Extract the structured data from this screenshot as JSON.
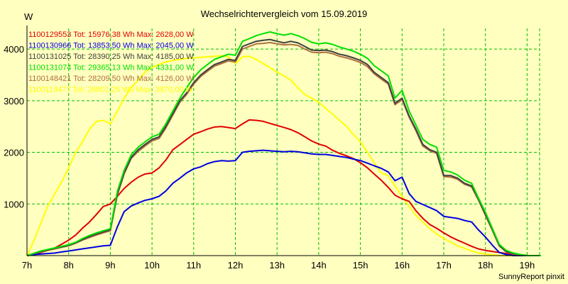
{
  "chart_data": {
    "type": "line",
    "title": "Wechselrichtervergleich vom 15.09.2019",
    "ylabel": "W",
    "xlabel": "",
    "credit": "SunnyReport pinxit",
    "ylim": [
      0,
      4400
    ],
    "xlim": [
      7,
      19.3
    ],
    "grid": true,
    "xticks": [
      {
        "v": 7,
        "label": "7h"
      },
      {
        "v": 8,
        "label": "8h"
      },
      {
        "v": 9,
        "label": "9h"
      },
      {
        "v": 10,
        "label": "10h"
      },
      {
        "v": 11,
        "label": "11h"
      },
      {
        "v": 12,
        "label": "12h"
      },
      {
        "v": 13,
        "label": "13h"
      },
      {
        "v": 14,
        "label": "14h"
      },
      {
        "v": 15,
        "label": "15h"
      },
      {
        "v": 16,
        "label": "16h"
      },
      {
        "v": 17,
        "label": "17h"
      },
      {
        "v": 18,
        "label": "18h"
      },
      {
        "v": 19,
        "label": "19h"
      }
    ],
    "yticks": [
      {
        "v": 1000,
        "label": "1000"
      },
      {
        "v": 2000,
        "label": "2000"
      },
      {
        "v": 3000,
        "label": "3000"
      },
      {
        "v": 4000,
        "label": "4000"
      }
    ],
    "x": [
      7.0,
      7.17,
      7.33,
      7.5,
      7.67,
      7.83,
      8.0,
      8.17,
      8.33,
      8.5,
      8.67,
      8.83,
      9.0,
      9.17,
      9.33,
      9.5,
      9.67,
      9.83,
      10.0,
      10.17,
      10.33,
      10.5,
      10.67,
      10.83,
      11.0,
      11.17,
      11.33,
      11.5,
      11.67,
      11.83,
      12.0,
      12.17,
      12.33,
      12.5,
      12.67,
      12.83,
      13.0,
      13.17,
      13.33,
      13.5,
      13.67,
      13.83,
      14.0,
      14.17,
      14.33,
      14.5,
      14.67,
      14.83,
      15.0,
      15.17,
      15.33,
      15.5,
      15.67,
      15.83,
      16.0,
      16.17,
      16.33,
      16.5,
      16.67,
      16.83,
      17.0,
      17.17,
      17.33,
      17.5,
      17.67,
      17.83,
      18.0,
      18.17,
      18.33,
      18.5,
      18.67,
      18.83,
      19.0,
      19.17,
      19.33
    ],
    "series": [
      {
        "name": "1100129553",
        "legend": "1100129553 Tot: 15976,38 Wh Max: 2628,00 W",
        "color": "#e00000",
        "values": [
          0,
          30,
          60,
          100,
          150,
          220,
          300,
          400,
          530,
          650,
          800,
          950,
          1000,
          1150,
          1300,
          1420,
          1520,
          1580,
          1600,
          1700,
          1850,
          2050,
          2150,
          2250,
          2350,
          2400,
          2450,
          2490,
          2500,
          2480,
          2460,
          2550,
          2628,
          2620,
          2600,
          2560,
          2520,
          2480,
          2440,
          2380,
          2300,
          2220,
          2160,
          2120,
          2040,
          1980,
          1930,
          1880,
          1800,
          1700,
          1580,
          1460,
          1320,
          1170,
          1100,
          1050,
          870,
          720,
          600,
          530,
          440,
          360,
          300,
          240,
          180,
          130,
          100,
          80,
          60,
          40,
          25,
          10,
          0,
          0,
          0
        ]
      },
      {
        "name": "1100130966",
        "legend": "1100130966 Tot: 13853,50 Wh Max: 2045,00 W",
        "color": "#0000e0",
        "values": [
          0,
          20,
          30,
          40,
          50,
          70,
          90,
          110,
          130,
          150,
          170,
          190,
          200,
          560,
          850,
          960,
          1020,
          1070,
          1100,
          1150,
          1250,
          1400,
          1500,
          1600,
          1680,
          1720,
          1780,
          1820,
          1840,
          1830,
          1840,
          2000,
          2020,
          2030,
          2040,
          2030,
          2020,
          2010,
          2020,
          2010,
          1990,
          1970,
          1960,
          1960,
          1940,
          1920,
          1900,
          1870,
          1840,
          1790,
          1740,
          1690,
          1620,
          1450,
          1520,
          1200,
          1050,
          990,
          930,
          870,
          760,
          740,
          720,
          680,
          650,
          500,
          360,
          200,
          60,
          20,
          0,
          0,
          0,
          0,
          0
        ]
      },
      {
        "name": "1100131025",
        "legend": "1100131025 Tot: 28390,25 Wh Max: 4185,00 W",
        "color": "#404040",
        "values": [
          0,
          40,
          80,
          110,
          140,
          170,
          200,
          250,
          310,
          370,
          420,
          460,
          500,
          1200,
          1600,
          1900,
          2050,
          2150,
          2250,
          2300,
          2500,
          2750,
          3000,
          3150,
          3350,
          3500,
          3600,
          3700,
          3750,
          3800,
          3780,
          4050,
          4100,
          4150,
          4170,
          4185,
          4150,
          4120,
          4150,
          4120,
          4050,
          3980,
          3970,
          3980,
          3950,
          3900,
          3870,
          3830,
          3780,
          3700,
          3550,
          3450,
          3350,
          2950,
          3050,
          2700,
          2450,
          2150,
          2050,
          2000,
          1550,
          1550,
          1500,
          1400,
          1350,
          1100,
          800,
          500,
          200,
          80,
          40,
          20,
          0,
          0,
          0
        ]
      },
      {
        "name": "1100131074",
        "legend": "1100131074 Tot: 29365,13 Wh Max: 4331,00 W",
        "color": "#00e000",
        "values": [
          0,
          45,
          90,
          120,
          150,
          180,
          210,
          260,
          330,
          390,
          440,
          480,
          520,
          1250,
          1650,
          1950,
          2100,
          2200,
          2300,
          2350,
          2550,
          2800,
          3050,
          3250,
          3450,
          3600,
          3700,
          3800,
          3850,
          3900,
          3880,
          4150,
          4200,
          4260,
          4300,
          4331,
          4300,
          4270,
          4300,
          4260,
          4200,
          4130,
          4100,
          4120,
          4090,
          4040,
          4000,
          3960,
          3900,
          3820,
          3680,
          3580,
          3480,
          3050,
          3200,
          2800,
          2530,
          2250,
          2150,
          2100,
          1650,
          1620,
          1560,
          1460,
          1400,
          1120,
          840,
          520,
          220,
          100,
          50,
          20,
          0,
          0,
          0
        ]
      },
      {
        "name": "1100148421",
        "legend": "1100148421 Tot: 28209,50 Wh Max: 4126,00 W",
        "color": "#b07040",
        "values": [
          0,
          40,
          70,
          100,
          130,
          160,
          190,
          240,
          300,
          350,
          400,
          440,
          480,
          1180,
          1580,
          1880,
          2020,
          2120,
          2220,
          2270,
          2470,
          2720,
          2970,
          3120,
          3320,
          3470,
          3570,
          3670,
          3720,
          3770,
          3750,
          4000,
          4050,
          4100,
          4110,
          4126,
          4100,
          4080,
          4090,
          4070,
          4000,
          3940,
          3930,
          3940,
          3910,
          3860,
          3830,
          3790,
          3740,
          3660,
          3520,
          3420,
          3320,
          2920,
          3020,
          2680,
          2420,
          2120,
          2030,
          1980,
          1530,
          1520,
          1480,
          1380,
          1330,
          1080,
          780,
          480,
          190,
          70,
          30,
          10,
          0,
          0,
          0
        ]
      },
      {
        "name": "1100119477",
        "legend": "1100119477 Tot: 26801,25 Wh Max: 3870,00 W",
        "color": "#ffff00",
        "values": [
          0,
          300,
          620,
          960,
          1200,
          1420,
          1700,
          2000,
          2200,
          2450,
          2600,
          2620,
          2550,
          2800,
          3050,
          3250,
          3400,
          3550,
          3650,
          3700,
          3750,
          3780,
          3800,
          3820,
          3830,
          3840,
          3850,
          3860,
          3870,
          3850,
          3720,
          3850,
          3860,
          3800,
          3720,
          3640,
          3550,
          3480,
          3400,
          3250,
          3120,
          3050,
          2970,
          2850,
          2740,
          2620,
          2500,
          2350,
          2200,
          2000,
          1800,
          1600,
          1550,
          1350,
          1150,
          950,
          780,
          650,
          520,
          420,
          330,
          260,
          190,
          140,
          90,
          50,
          30,
          15,
          0,
          0,
          0,
          0,
          0,
          0,
          0
        ]
      }
    ]
  }
}
